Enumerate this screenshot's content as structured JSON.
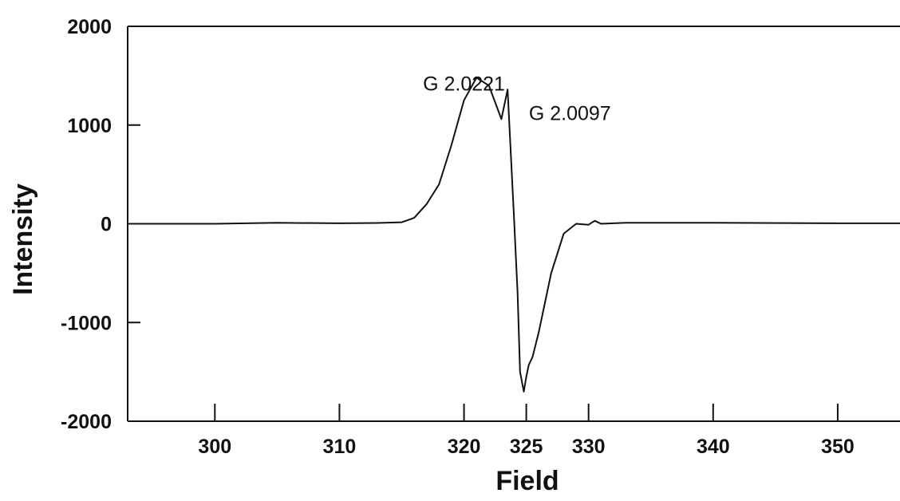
{
  "chart_data": {
    "type": "line",
    "title": "",
    "xlabel": "Field",
    "ylabel": "Intensity",
    "xlim": [
      293,
      355
    ],
    "ylim": [
      -2000,
      2000
    ],
    "x_ticks": [
      300,
      310,
      320,
      325,
      330,
      340,
      350
    ],
    "y_ticks": [
      2000,
      1000,
      0,
      -1000,
      -2000
    ],
    "grid": false,
    "legend": "none",
    "annotations": [
      {
        "text": "G 2.0221",
        "x": 320.0,
        "y": 1350
      },
      {
        "text": "G 2.0097",
        "x": 328.5,
        "y": 1050
      }
    ],
    "series": [
      {
        "color": "#111111",
        "x": [
          293,
          300,
          305,
          310,
          313,
          315,
          316,
          317,
          318,
          319,
          320,
          321,
          322,
          323,
          323.5,
          324.0,
          324.3,
          324.5,
          324.8,
          325.0,
          325.2,
          325.5,
          326.0,
          327,
          328,
          329,
          330,
          330.3,
          330.5,
          331,
          333,
          340,
          350,
          355
        ],
        "y": [
          0,
          0,
          10,
          5,
          8,
          15,
          60,
          200,
          400,
          800,
          1250,
          1480,
          1400,
          1060,
          1360,
          100,
          -700,
          -1500,
          -1700,
          -1550,
          -1430,
          -1350,
          -1100,
          -500,
          -100,
          0,
          -10,
          15,
          30,
          0,
          10,
          10,
          5,
          5
        ]
      }
    ]
  }
}
